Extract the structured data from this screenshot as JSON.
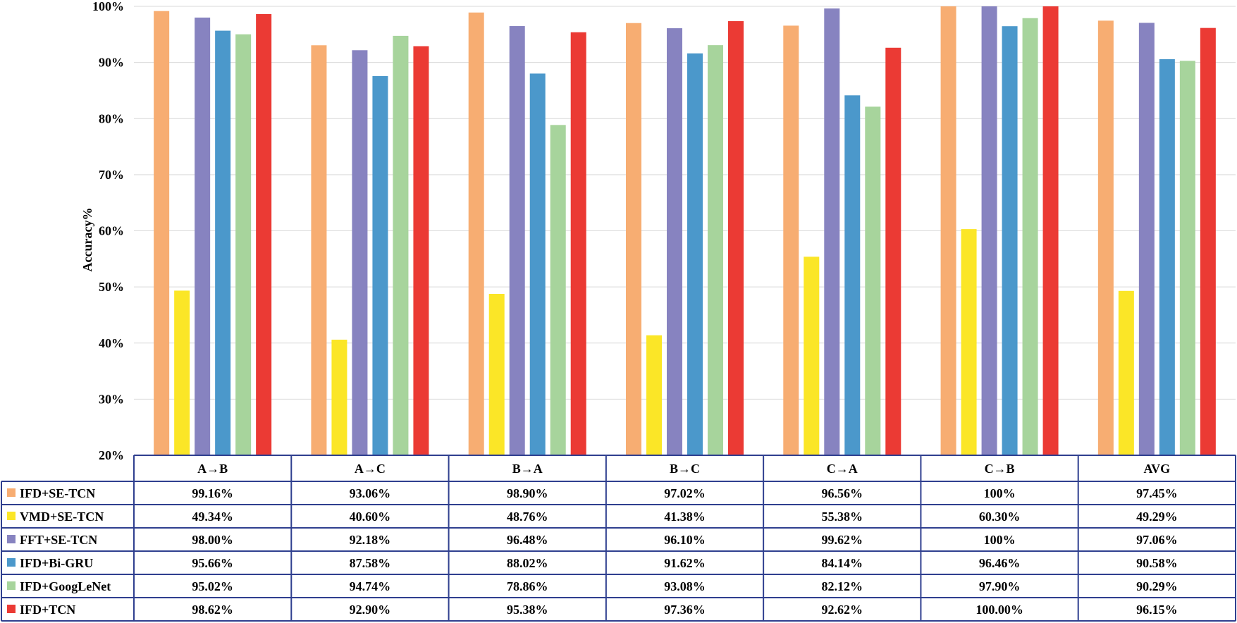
{
  "chart_data": {
    "type": "bar",
    "title": "",
    "xlabel": "",
    "ylabel": "Accuracy%",
    "ylim": [
      20,
      100
    ],
    "yticks": [
      "20%",
      "30%",
      "40%",
      "50%",
      "60%",
      "70%",
      "80%",
      "90%",
      "100%"
    ],
    "grid": true,
    "legend": "data-table-below",
    "categories": [
      "A→B",
      "A→C",
      "B→A",
      "B→C",
      "C→A",
      "C→B",
      "AVG"
    ],
    "series": [
      {
        "name": "IFD+SE-TCN",
        "color": "#f7ad72",
        "values": [
          99.16,
          93.06,
          98.9,
          97.02,
          96.56,
          100,
          97.45
        ],
        "labels": [
          "99.16%",
          "93.06%",
          "98.90%",
          "97.02%",
          "96.56%",
          "100%",
          "97.45%"
        ]
      },
      {
        "name": "VMD+SE-TCN",
        "color": "#fbe627",
        "values": [
          49.34,
          40.6,
          48.76,
          41.38,
          55.38,
          60.3,
          49.29
        ],
        "labels": [
          "49.34%",
          "40.60%",
          "48.76%",
          "41.38%",
          "55.38%",
          "60.30%",
          "49.29%"
        ]
      },
      {
        "name": "FFT+SE-TCN",
        "color": "#8783c0",
        "values": [
          98.0,
          92.18,
          96.48,
          96.1,
          99.62,
          100,
          97.06
        ],
        "labels": [
          "98.00%",
          "92.18%",
          "96.48%",
          "96.10%",
          "99.62%",
          "100%",
          "97.06%"
        ]
      },
      {
        "name": "IFD+Bi-GRU",
        "color": "#4b98cb",
        "values": [
          95.66,
          87.58,
          88.02,
          91.62,
          84.14,
          96.46,
          90.58
        ],
        "labels": [
          "95.66%",
          "87.58%",
          "88.02%",
          "91.62%",
          "84.14%",
          "96.46%",
          "90.58%"
        ]
      },
      {
        "name": "IFD+GoogLeNet",
        "color": "#a7d49c",
        "values": [
          95.02,
          94.74,
          78.86,
          93.08,
          82.12,
          97.9,
          90.29
        ],
        "labels": [
          "95.02%",
          "94.74%",
          "78.86%",
          "93.08%",
          "82.12%",
          "97.90%",
          "90.29%"
        ]
      },
      {
        "name": "IFD+TCN",
        "color": "#eb3a34",
        "values": [
          98.62,
          92.9,
          95.38,
          97.36,
          92.62,
          100.0,
          96.15
        ],
        "labels": [
          "98.62%",
          "92.90%",
          "95.38%",
          "97.36%",
          "92.62%",
          "100.00%",
          "96.15%"
        ]
      }
    ]
  }
}
